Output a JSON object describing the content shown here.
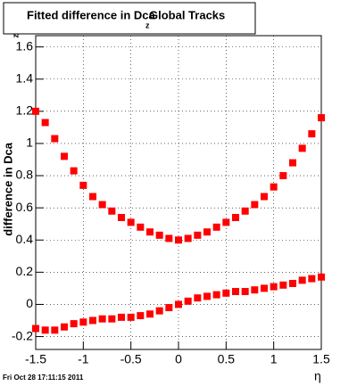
{
  "chart_data": {
    "type": "scatter",
    "title": "Fitted difference in Dca",
    "title_subscript": "z",
    "title_end": "Global Tracks",
    "y_label": "difference in Dca",
    "y_label_subscript": "z",
    "x_label": "η",
    "footer": "Fri Oct 28 17:11:15 2011",
    "x": [
      -1.5,
      -1.4,
      -1.3,
      -1.2,
      -1.1,
      -1.0,
      -0.9,
      -0.8,
      -0.7,
      -0.6,
      -0.5,
      -0.4,
      -0.3,
      -0.2,
      -0.1,
      0,
      0.1,
      0.2,
      0.3,
      0.4,
      0.5,
      0.6,
      0.7,
      0.8,
      0.9,
      1.0,
      1.1,
      1.2,
      1.3,
      1.4,
      1.5
    ],
    "series": [
      {
        "color": "#ff0000",
        "values": [
          1.2,
          1.13,
          1.03,
          0.92,
          0.83,
          0.74,
          0.67,
          0.62,
          0.58,
          0.54,
          0.51,
          0.48,
          0.45,
          0.43,
          0.41,
          0.4,
          0.41,
          0.43,
          0.45,
          0.48,
          0.51,
          0.54,
          0.58,
          0.62,
          0.67,
          0.73,
          0.8,
          0.88,
          0.97,
          1.06,
          1.16
        ]
      },
      {
        "color": "#ff0000",
        "values": [
          -0.15,
          -0.16,
          -0.16,
          -0.14,
          -0.12,
          -0.11,
          -0.1,
          -0.09,
          -0.09,
          -0.08,
          -0.08,
          -0.07,
          -0.06,
          -0.04,
          -0.02,
          0.0,
          0.02,
          0.04,
          0.05,
          0.06,
          0.07,
          0.08,
          0.08,
          0.09,
          0.1,
          0.11,
          0.12,
          0.13,
          0.15,
          0.16,
          0.17
        ]
      }
    ],
    "xlim": [
      -1.5,
      1.5
    ],
    "ylim": [
      -0.28,
      1.67
    ],
    "xticks": [
      -1.5,
      -1,
      -0.5,
      0,
      0.5,
      1,
      1.5
    ],
    "yticks": [
      -0.2,
      0,
      0.2,
      0.4,
      0.6,
      0.8,
      1,
      1.2,
      1.4,
      1.6
    ],
    "grid": true
  }
}
